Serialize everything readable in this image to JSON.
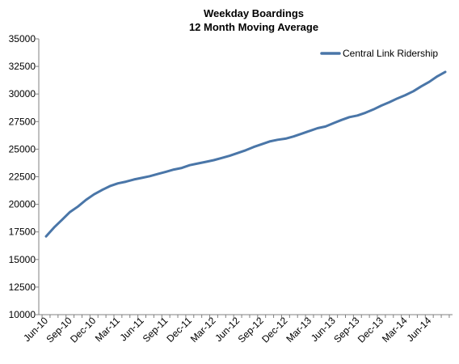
{
  "chart_data": {
    "type": "line",
    "title": "Weekday Boardings",
    "subtitle": "12 Month Moving Average",
    "xlabel": "",
    "ylabel": "",
    "ylim": [
      10000,
      35000
    ],
    "yticks": [
      10000,
      12500,
      15000,
      17500,
      20000,
      22500,
      25000,
      27500,
      30000,
      32500,
      35000
    ],
    "xtick_labels": [
      "Jun-10",
      "Sep-10",
      "Dec-10",
      "Mar-11",
      "Jun-11",
      "Sep-11",
      "Dec-11",
      "Mar-12",
      "Jun-12",
      "Sep-12",
      "Dec-12",
      "Mar-13",
      "Jun-13",
      "Sep-13",
      "Dec-13",
      "Mar-14",
      "Jun-14"
    ],
    "grid": false,
    "legend_position": "top-right",
    "line_color": "#4a76a8",
    "x": [
      "Jun-10",
      "Jul-10",
      "Aug-10",
      "Sep-10",
      "Oct-10",
      "Nov-10",
      "Dec-10",
      "Jan-11",
      "Feb-11",
      "Mar-11",
      "Apr-11",
      "May-11",
      "Jun-11",
      "Jul-11",
      "Aug-11",
      "Sep-11",
      "Oct-11",
      "Nov-11",
      "Dec-11",
      "Jan-12",
      "Feb-12",
      "Mar-12",
      "Apr-12",
      "May-12",
      "Jun-12",
      "Jul-12",
      "Aug-12",
      "Sep-12",
      "Oct-12",
      "Nov-12",
      "Dec-12",
      "Jan-13",
      "Feb-13",
      "Mar-13",
      "Apr-13",
      "May-13",
      "Jun-13",
      "Jul-13",
      "Aug-13",
      "Sep-13",
      "Oct-13",
      "Nov-13",
      "Dec-13",
      "Jan-14",
      "Feb-14",
      "Mar-14",
      "Apr-14",
      "May-14",
      "Jun-14",
      "Jul-14",
      "Aug-14"
    ],
    "series": [
      {
        "name": "Central Link Ridership",
        "values": [
          17100,
          17900,
          18600,
          19300,
          19800,
          20400,
          20900,
          21300,
          21650,
          21900,
          22050,
          22250,
          22400,
          22550,
          22750,
          22950,
          23150,
          23300,
          23550,
          23700,
          23850,
          24000,
          24200,
          24400,
          24650,
          24900,
          25200,
          25450,
          25700,
          25850,
          25950,
          26150,
          26400,
          26650,
          26900,
          27050,
          27350,
          27650,
          27900,
          28050,
          28300,
          28600,
          28950,
          29250,
          29600,
          29900,
          30250,
          30700,
          31100,
          31600,
          32000
        ]
      }
    ]
  }
}
